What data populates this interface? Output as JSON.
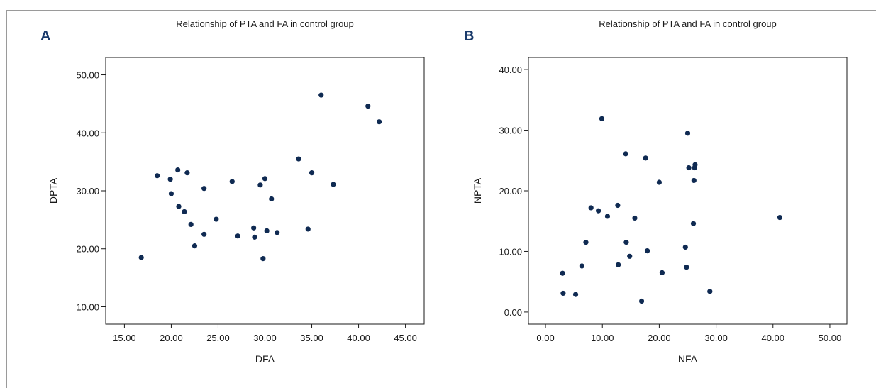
{
  "chart_data": [
    {
      "type": "scatter",
      "panel": "A",
      "title": "Relationship of PTA and FA in control group",
      "xlabel": "DFA",
      "ylabel": "DPTA",
      "xlim": [
        13.0,
        47.0
      ],
      "ylim": [
        7.0,
        53.0
      ],
      "xticks": [
        "15.00",
        "20.00",
        "25.00",
        "30.00",
        "35.00",
        "40.00",
        "45.00"
      ],
      "yticks": [
        "10.00",
        "20.00",
        "30.00",
        "40.00",
        "50.00"
      ],
      "xtick_values": [
        15,
        20,
        25,
        30,
        35,
        40,
        45
      ],
      "ytick_values": [
        10,
        20,
        30,
        40,
        50
      ],
      "grid": false,
      "color": "#0f2a52",
      "x": [
        16.8,
        18.5,
        19.9,
        20.0,
        20.7,
        20.8,
        21.4,
        21.7,
        22.1,
        22.5,
        23.5,
        23.5,
        24.8,
        26.5,
        27.1,
        28.8,
        28.9,
        29.5,
        29.8,
        30.0,
        30.2,
        30.7,
        31.3,
        33.6,
        34.6,
        35.0,
        36.0,
        37.3,
        41.0,
        42.2
      ],
      "y": [
        18.5,
        32.6,
        32.0,
        29.5,
        33.6,
        27.3,
        26.4,
        33.1,
        24.2,
        20.5,
        30.4,
        22.5,
        25.1,
        31.6,
        22.2,
        23.6,
        22.0,
        31.0,
        18.3,
        32.1,
        23.1,
        28.6,
        22.8,
        35.5,
        23.4,
        33.1,
        46.5,
        31.1,
        44.6,
        41.9
      ]
    },
    {
      "type": "scatter",
      "panel": "B",
      "title": "Relationship of PTA and FA in control group",
      "xlabel": "NFA",
      "ylabel": "NPTA",
      "xlim": [
        -3.0,
        53.0
      ],
      "ylim": [
        -2.0,
        42.0
      ],
      "xticks": [
        "0.00",
        "10.00",
        "20.00",
        "30.00",
        "40.00",
        "50.00"
      ],
      "yticks": [
        "0.00",
        "10.00",
        "20.00",
        "30.00",
        "40.00"
      ],
      "xtick_values": [
        0,
        10,
        20,
        30,
        40,
        50
      ],
      "ytick_values": [
        0,
        10,
        20,
        30,
        40
      ],
      "grid": false,
      "color": "#0f2a52",
      "x": [
        3.0,
        3.1,
        5.3,
        6.4,
        7.1,
        8.0,
        9.3,
        9.9,
        10.9,
        12.7,
        12.8,
        14.1,
        14.2,
        14.8,
        15.7,
        16.9,
        17.6,
        17.9,
        20.0,
        20.5,
        24.6,
        24.8,
        25.0,
        25.2,
        26.0,
        26.1,
        26.2,
        26.3,
        28.9,
        41.2
      ],
      "y": [
        6.4,
        3.1,
        2.9,
        7.6,
        11.5,
        17.2,
        16.7,
        31.9,
        15.8,
        17.6,
        7.8,
        26.1,
        11.5,
        9.2,
        15.5,
        1.8,
        25.4,
        10.1,
        21.4,
        6.5,
        10.7,
        7.4,
        29.5,
        23.8,
        14.6,
        21.7,
        23.8,
        24.3,
        3.4,
        15.6
      ]
    }
  ]
}
